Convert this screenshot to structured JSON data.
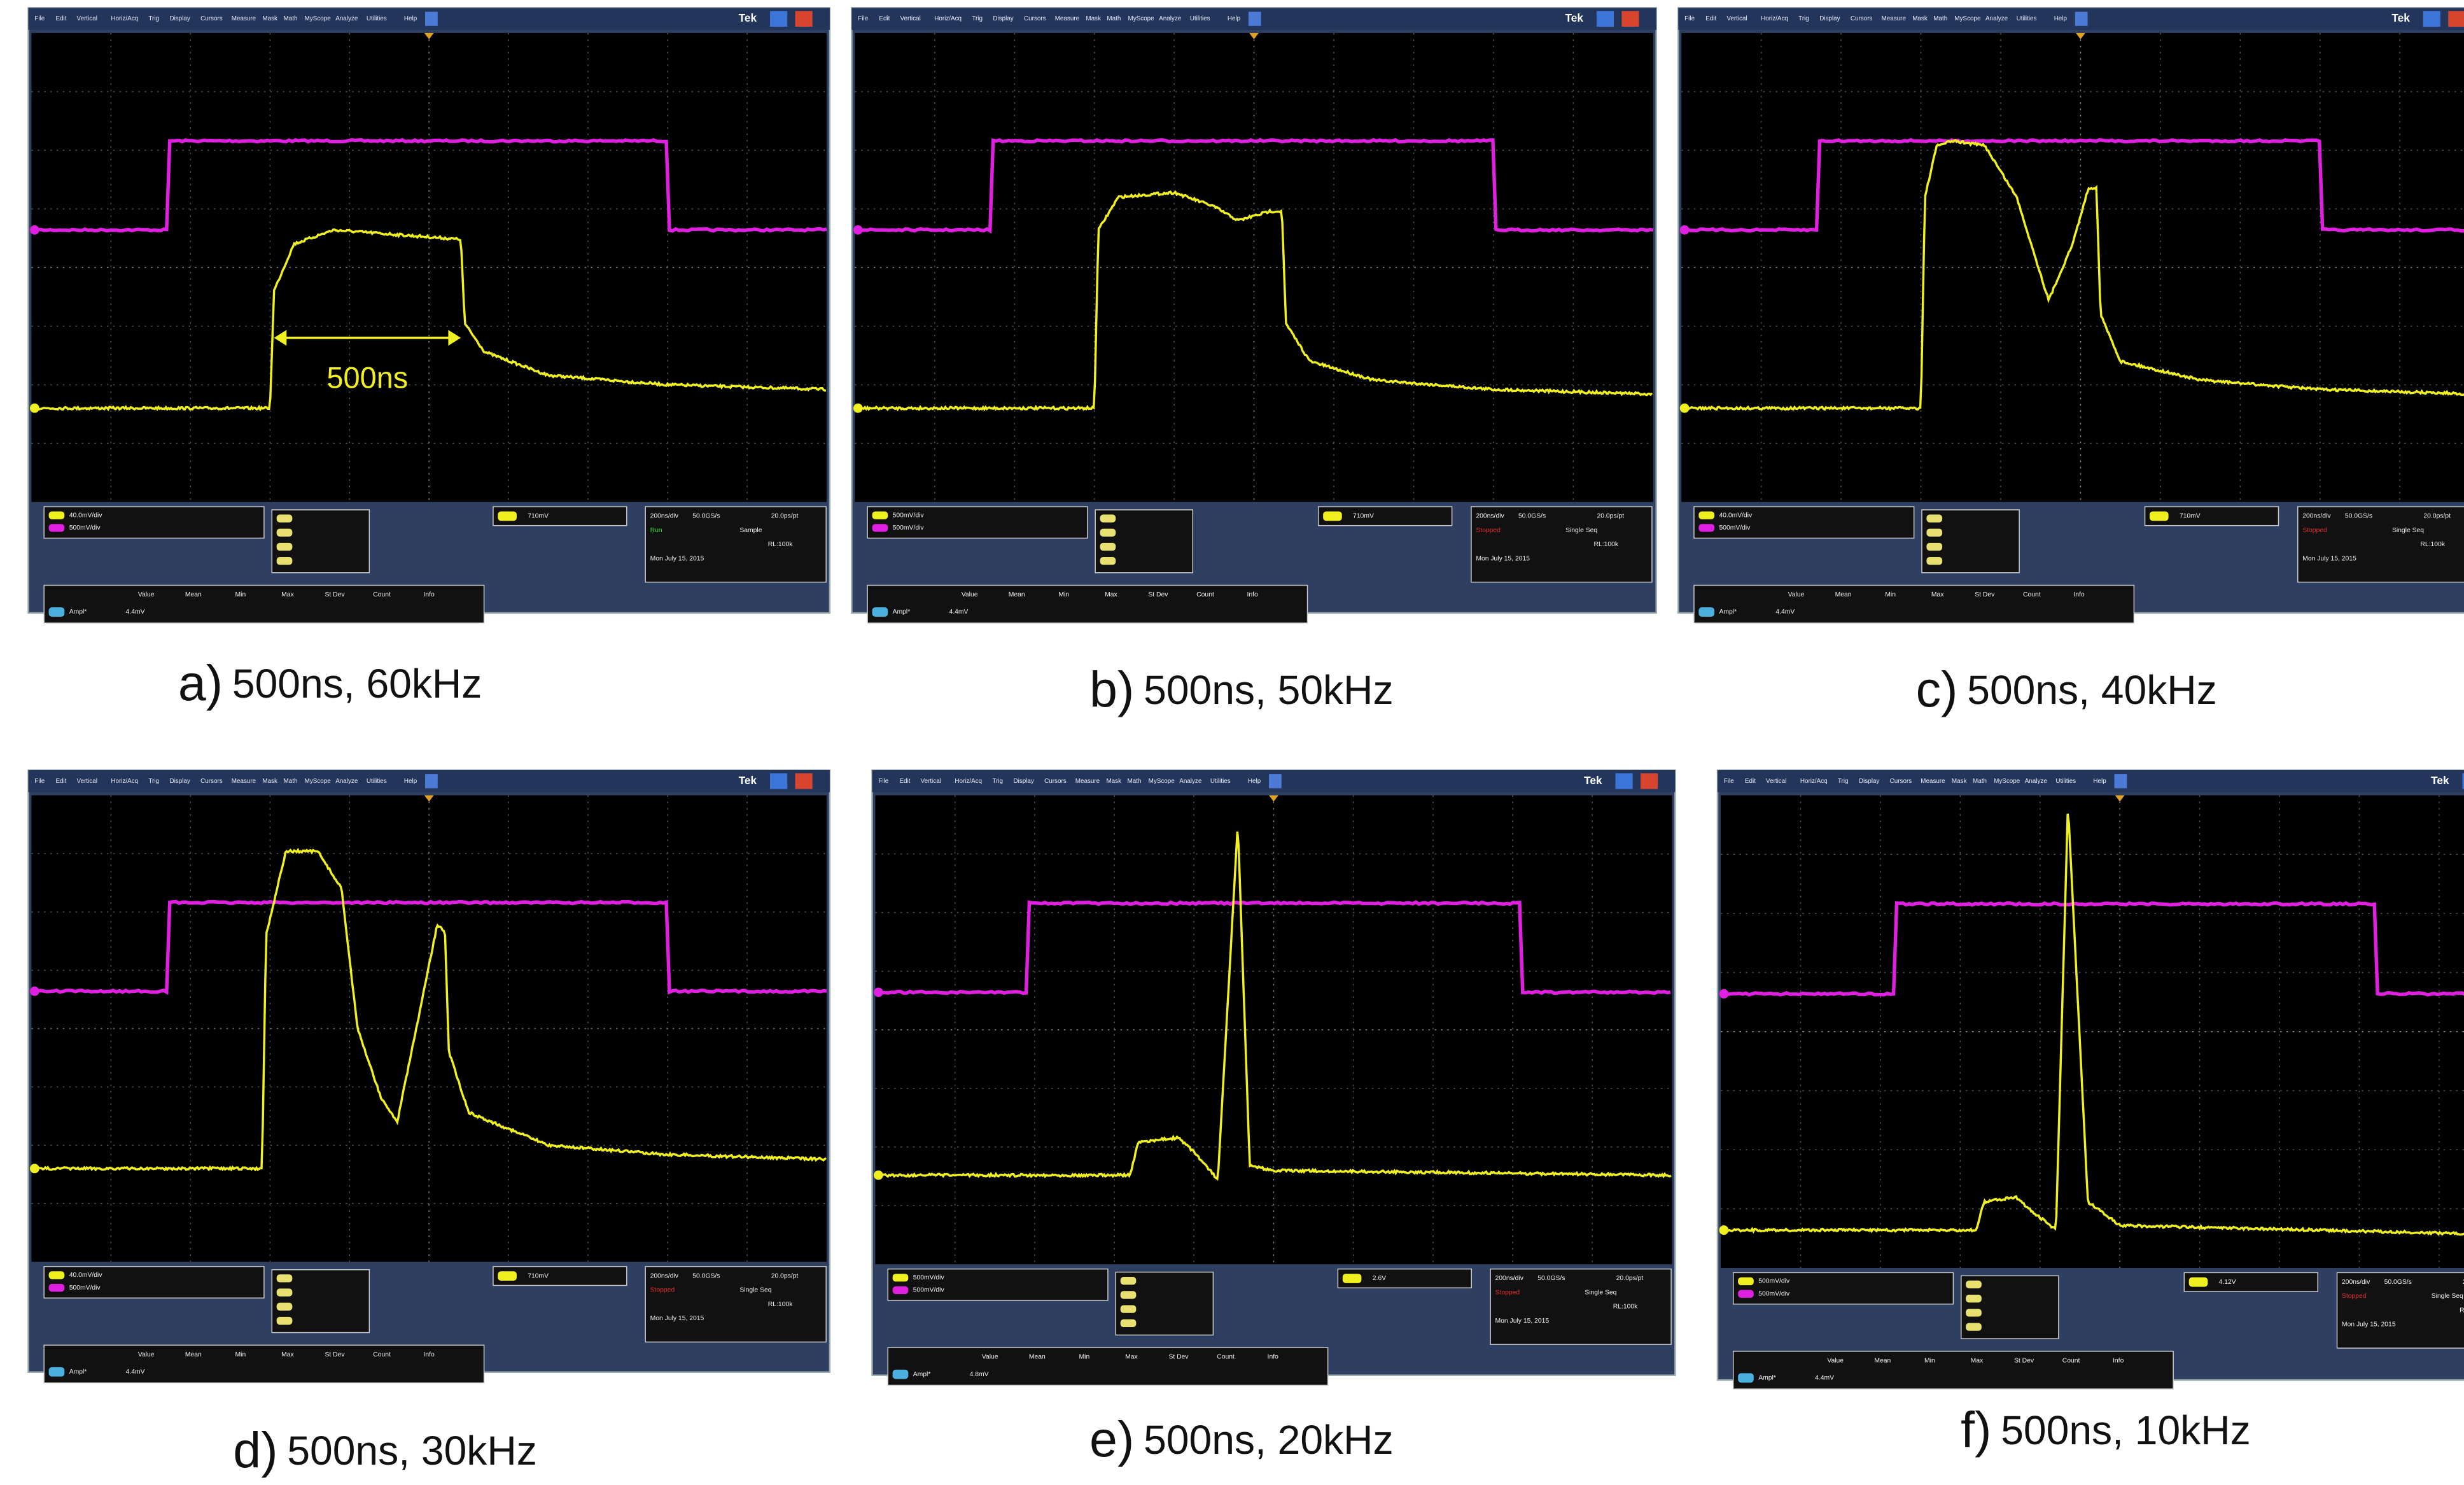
{
  "scope": {
    "menu": [
      "File",
      "Edit",
      "Vertical",
      "Horiz/Acq",
      "Trig",
      "Display",
      "Cursors",
      "Measure",
      "Mask",
      "Math",
      "MyScope",
      "Analyze",
      "Utilities",
      "Help"
    ],
    "brand": "Tek",
    "timebase": "200ns/div",
    "rate": "50.0GS/s",
    "resolution": "20.0ps/pt",
    "record": "RL:100k",
    "date": "Mon July 15, 2015",
    "columns": [
      "Value",
      "Mean",
      "Min",
      "Max",
      "St Dev",
      "Count",
      "Info"
    ],
    "measure": "Ampl*"
  },
  "annotation": "500ns",
  "panels": [
    {
      "label": "a)",
      "text": "500ns, 60kHz",
      "scale1": "40.0mV/div",
      "scale2": "500mV/div",
      "trigger": "710mV",
      "state": "Run",
      "mode": "Sample",
      "value": "4.4mV"
    },
    {
      "label": "b)",
      "text": "500ns, 50kHz",
      "scale1": "500mV/div",
      "scale2": "500mV/div",
      "trigger": "710mV",
      "state": "Stopped",
      "mode": "Single Seq",
      "value": "4.4mV"
    },
    {
      "label": "c)",
      "text": "500ns, 40kHz",
      "scale1": "40.0mV/div",
      "scale2": "500mV/div",
      "trigger": "710mV",
      "state": "Stopped",
      "mode": "Single Seq",
      "value": "4.4mV"
    },
    {
      "label": "d)",
      "text": "500ns, 30kHz",
      "scale1": "40.0mV/div",
      "scale2": "500mV/div",
      "trigger": "710mV",
      "state": "Stopped",
      "mode": "Single Seq",
      "value": "4.4mV"
    },
    {
      "label": "e)",
      "text": "500ns, 20kHz",
      "scale1": "500mV/div",
      "scale2": "500mV/div",
      "trigger": "2.6V",
      "state": "Stopped",
      "mode": "Single Seq",
      "value": "4.8mV"
    },
    {
      "label": "f)",
      "text": "500ns, 10kHz",
      "scale1": "500mV/div",
      "scale2": "500mV/div",
      "trigger": "4.12V",
      "state": "Stopped",
      "mode": "Single Seq",
      "value": "4.4mV"
    }
  ]
}
